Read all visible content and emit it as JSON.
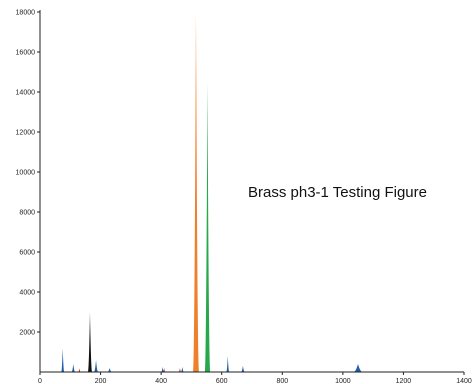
{
  "chart_data": {
    "type": "area",
    "title": "",
    "xlabel": "",
    "ylabel": "",
    "xlim": [
      0,
      1400
    ],
    "ylim": [
      0,
      18000
    ],
    "grid": false,
    "legend": "none",
    "annotation": "Brass ph3-1 Testing Figure",
    "x_ticks": [
      0,
      200,
      400,
      600,
      800,
      1000,
      1200,
      1400
    ],
    "y_ticks": [
      2000,
      4000,
      6000,
      8000,
      10000,
      12000,
      14000,
      16000,
      18000
    ],
    "series": [
      {
        "color": "#1f5fa8",
        "peaks": [
          {
            "x": 75,
            "height": 1200,
            "width": 10
          },
          {
            "x": 110,
            "height": 400,
            "width": 12
          },
          {
            "x": 185,
            "height": 600,
            "width": 14
          },
          {
            "x": 230,
            "height": 200,
            "width": 14
          },
          {
            "x": 405,
            "height": 250,
            "width": 10
          },
          {
            "x": 470,
            "height": 250,
            "width": 10
          },
          {
            "x": 620,
            "height": 800,
            "width": 10
          },
          {
            "x": 670,
            "height": 300,
            "width": 12
          },
          {
            "x": 1050,
            "height": 400,
            "width": 30
          }
        ]
      },
      {
        "color": "#cc2222",
        "peaks": [
          {
            "x": 130,
            "height": 180,
            "width": 8
          },
          {
            "x": 410,
            "height": 200,
            "width": 8
          },
          {
            "x": 462,
            "height": 200,
            "width": 8
          }
        ]
      },
      {
        "color": "#111111",
        "peaks": [
          {
            "x": 165,
            "height": 3000,
            "width": 14
          }
        ]
      },
      {
        "color": "#f07f2c",
        "peaks": [
          {
            "x": 515,
            "height": 18000,
            "width": 20
          }
        ]
      },
      {
        "color": "#27a84a",
        "peaks": [
          {
            "x": 553,
            "height": 14500,
            "width": 18
          }
        ]
      }
    ]
  }
}
